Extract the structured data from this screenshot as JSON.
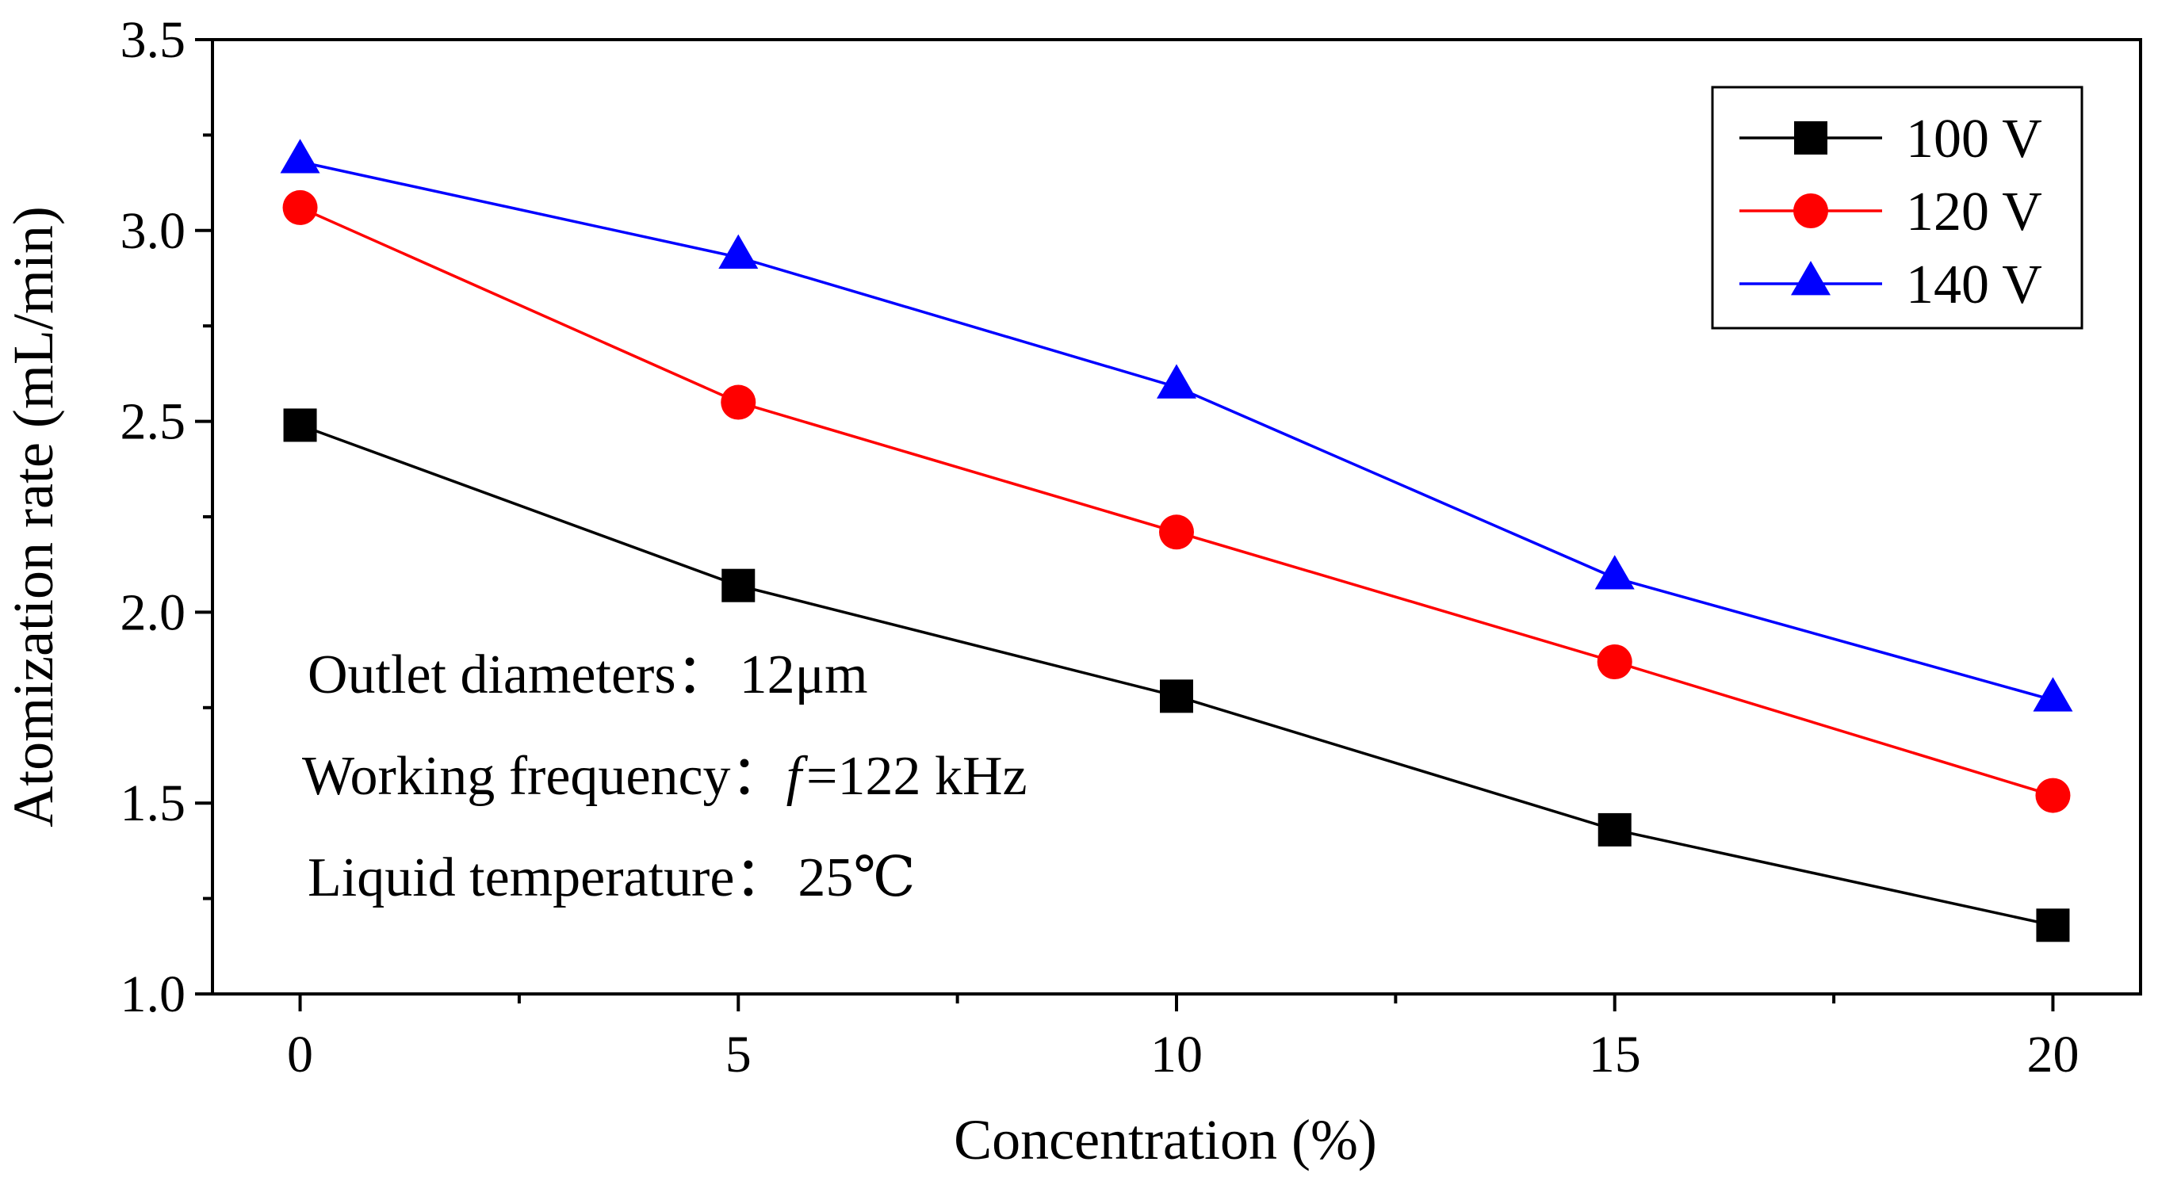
{
  "chart_data": {
    "type": "line",
    "title": "",
    "xlabel": "Concentration (%)",
    "ylabel": "Atomization rate (mL/min)",
    "x": [
      0,
      5,
      10,
      15,
      20
    ],
    "xlim": [
      -1,
      21
    ],
    "ylim": [
      1.0,
      3.5
    ],
    "xticks": [
      0,
      5,
      10,
      15,
      20
    ],
    "xtick_labels": [
      "0",
      "5",
      "10",
      "15",
      "20"
    ],
    "yticks": [
      1.0,
      1.5,
      2.0,
      2.5,
      3.0,
      3.5
    ],
    "ytick_labels": [
      "1.0",
      "1.5",
      "2.0",
      "2.5",
      "3.0",
      "3.5"
    ],
    "grid": false,
    "legend_position": "top-right",
    "series": [
      {
        "name": "100 V",
        "marker": "square",
        "color": "#000000",
        "values": [
          2.49,
          2.07,
          1.78,
          1.43,
          1.18
        ]
      },
      {
        "name": "120 V",
        "marker": "circle",
        "color": "#ff0000",
        "values": [
          3.06,
          2.55,
          2.21,
          1.87,
          1.52
        ]
      },
      {
        "name": "140 V",
        "marker": "triangle",
        "color": "#0000ff",
        "values": [
          3.18,
          2.93,
          2.59,
          2.09,
          1.77
        ]
      }
    ],
    "annotations": {
      "outlet_label": "Outlet diameters：",
      "outlet_value": "12μm",
      "frequency_label": "Working frequency：",
      "frequency_symbol": "f",
      "frequency_value": "=122 kHz",
      "temperature_label": "Liquid temperature：",
      "temperature_value": "25℃"
    }
  }
}
